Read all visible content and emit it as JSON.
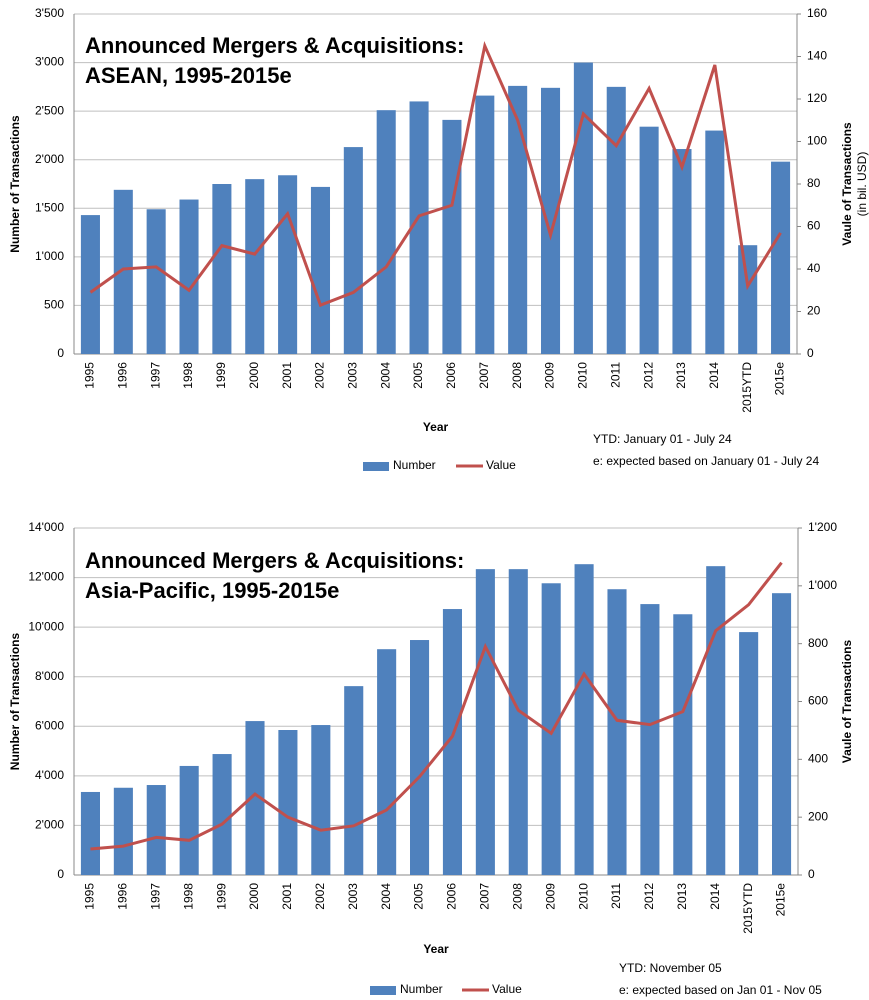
{
  "chart_data": [
    {
      "type": "combo",
      "title": "Announced Mergers & Acquisitions:",
      "subtitle": "ASEAN, 1995-2015e",
      "x_label": "Year",
      "y_label": "Number of Transactions",
      "y2_label": "Vaule of Transactions",
      "y2_sublabel": "(in bil. USD)",
      "notes": [
        "YTD: January 01 - July 24",
        "e: expected based on January 01 - July 24"
      ],
      "categories": [
        "1995",
        "1996",
        "1997",
        "1998",
        "1999",
        "2000",
        "2001",
        "2002",
        "2003",
        "2004",
        "2005",
        "2006",
        "2007",
        "2008",
        "2009",
        "2010",
        "2011",
        "2012",
        "2013",
        "2014",
        "2015YTD",
        "2015e"
      ],
      "series": [
        {
          "name": "Number",
          "color": "#4f81bd",
          "mark": "bar",
          "values": [
            1430,
            1690,
            1490,
            1590,
            1750,
            1800,
            1840,
            1720,
            2130,
            2510,
            2600,
            2410,
            2660,
            2760,
            2740,
            3000,
            2750,
            2340,
            2110,
            2300,
            1120,
            1980
          ]
        },
        {
          "name": "Value",
          "color": "#c0504d",
          "mark": "line",
          "axis": "y2",
          "values": [
            29,
            40,
            41,
            30,
            51,
            47,
            66,
            23,
            29,
            41,
            65,
            70,
            145,
            110,
            56,
            113,
            98,
            125,
            88,
            136,
            32,
            57
          ]
        }
      ],
      "ylim": [
        0,
        3500
      ],
      "yticks": [
        0,
        500,
        {
          "value": 1000,
          "label": "1'000"
        },
        {
          "value": 1500,
          "label": "1'500"
        },
        {
          "value": 2000,
          "label": "2'000"
        },
        {
          "value": 2500,
          "label": "2'500"
        },
        {
          "value": 3000,
          "label": "3'000"
        },
        {
          "value": 3500,
          "label": "3'500"
        }
      ],
      "y2lim": [
        0,
        160
      ],
      "y2ticks": [
        0,
        20,
        40,
        60,
        80,
        100,
        120,
        140,
        160
      ],
      "grid": true,
      "legend": "bottom"
    },
    {
      "type": "combo",
      "title": "Announced Mergers & Acquisitions:",
      "subtitle": "Asia-Pacific, 1995-2015e",
      "x_label": "Year",
      "y_label": "Number of Transactions",
      "y2_label": "Vaule of Transactions",
      "notes": [
        "YTD: November  05",
        "e: expected based on Jan 01 - Nov 05"
      ],
      "categories": [
        "1995",
        "1996",
        "1997",
        "1998",
        "1999",
        "2000",
        "2001",
        "2002",
        "2003",
        "2004",
        "2005",
        "2006",
        "2007",
        "2008",
        "2009",
        "2010",
        "2011",
        "2012",
        "2013",
        "2014",
        "2015YTD",
        "2015e"
      ],
      "series": [
        {
          "name": "Number",
          "color": "#4f81bd",
          "mark": "bar",
          "values": [
            3350,
            3520,
            3630,
            4400,
            4880,
            6210,
            5850,
            6050,
            7620,
            9110,
            9480,
            10730,
            12340,
            12340,
            11770,
            12540,
            11530,
            10930,
            10520,
            12460,
            9800,
            11370
          ]
        },
        {
          "name": "Value",
          "color": "#c0504d",
          "mark": "line",
          "axis": "y2",
          "values": [
            90,
            100,
            130,
            120,
            176,
            280,
            200,
            155,
            170,
            225,
            340,
            480,
            790,
            570,
            490,
            695,
            535,
            520,
            565,
            845,
            935,
            1080
          ]
        }
      ],
      "ylim": [
        0,
        14000
      ],
      "yticks": [
        0,
        {
          "value": 2000,
          "label": "2'000"
        },
        {
          "value": 4000,
          "label": "4'000"
        },
        {
          "value": 6000,
          "label": "6'000"
        },
        {
          "value": 8000,
          "label": "8'000"
        },
        {
          "value": 10000,
          "label": "10'000"
        },
        {
          "value": 12000,
          "label": "12'000"
        },
        {
          "value": 14000,
          "label": "14'000"
        }
      ],
      "y2lim": [
        0,
        1200
      ],
      "y2ticks": [
        0,
        200,
        400,
        600,
        800,
        {
          "value": 1000,
          "label": "1'000"
        },
        {
          "value": 1200,
          "label": "1'200"
        }
      ],
      "grid": true,
      "legend": "bottom"
    }
  ]
}
